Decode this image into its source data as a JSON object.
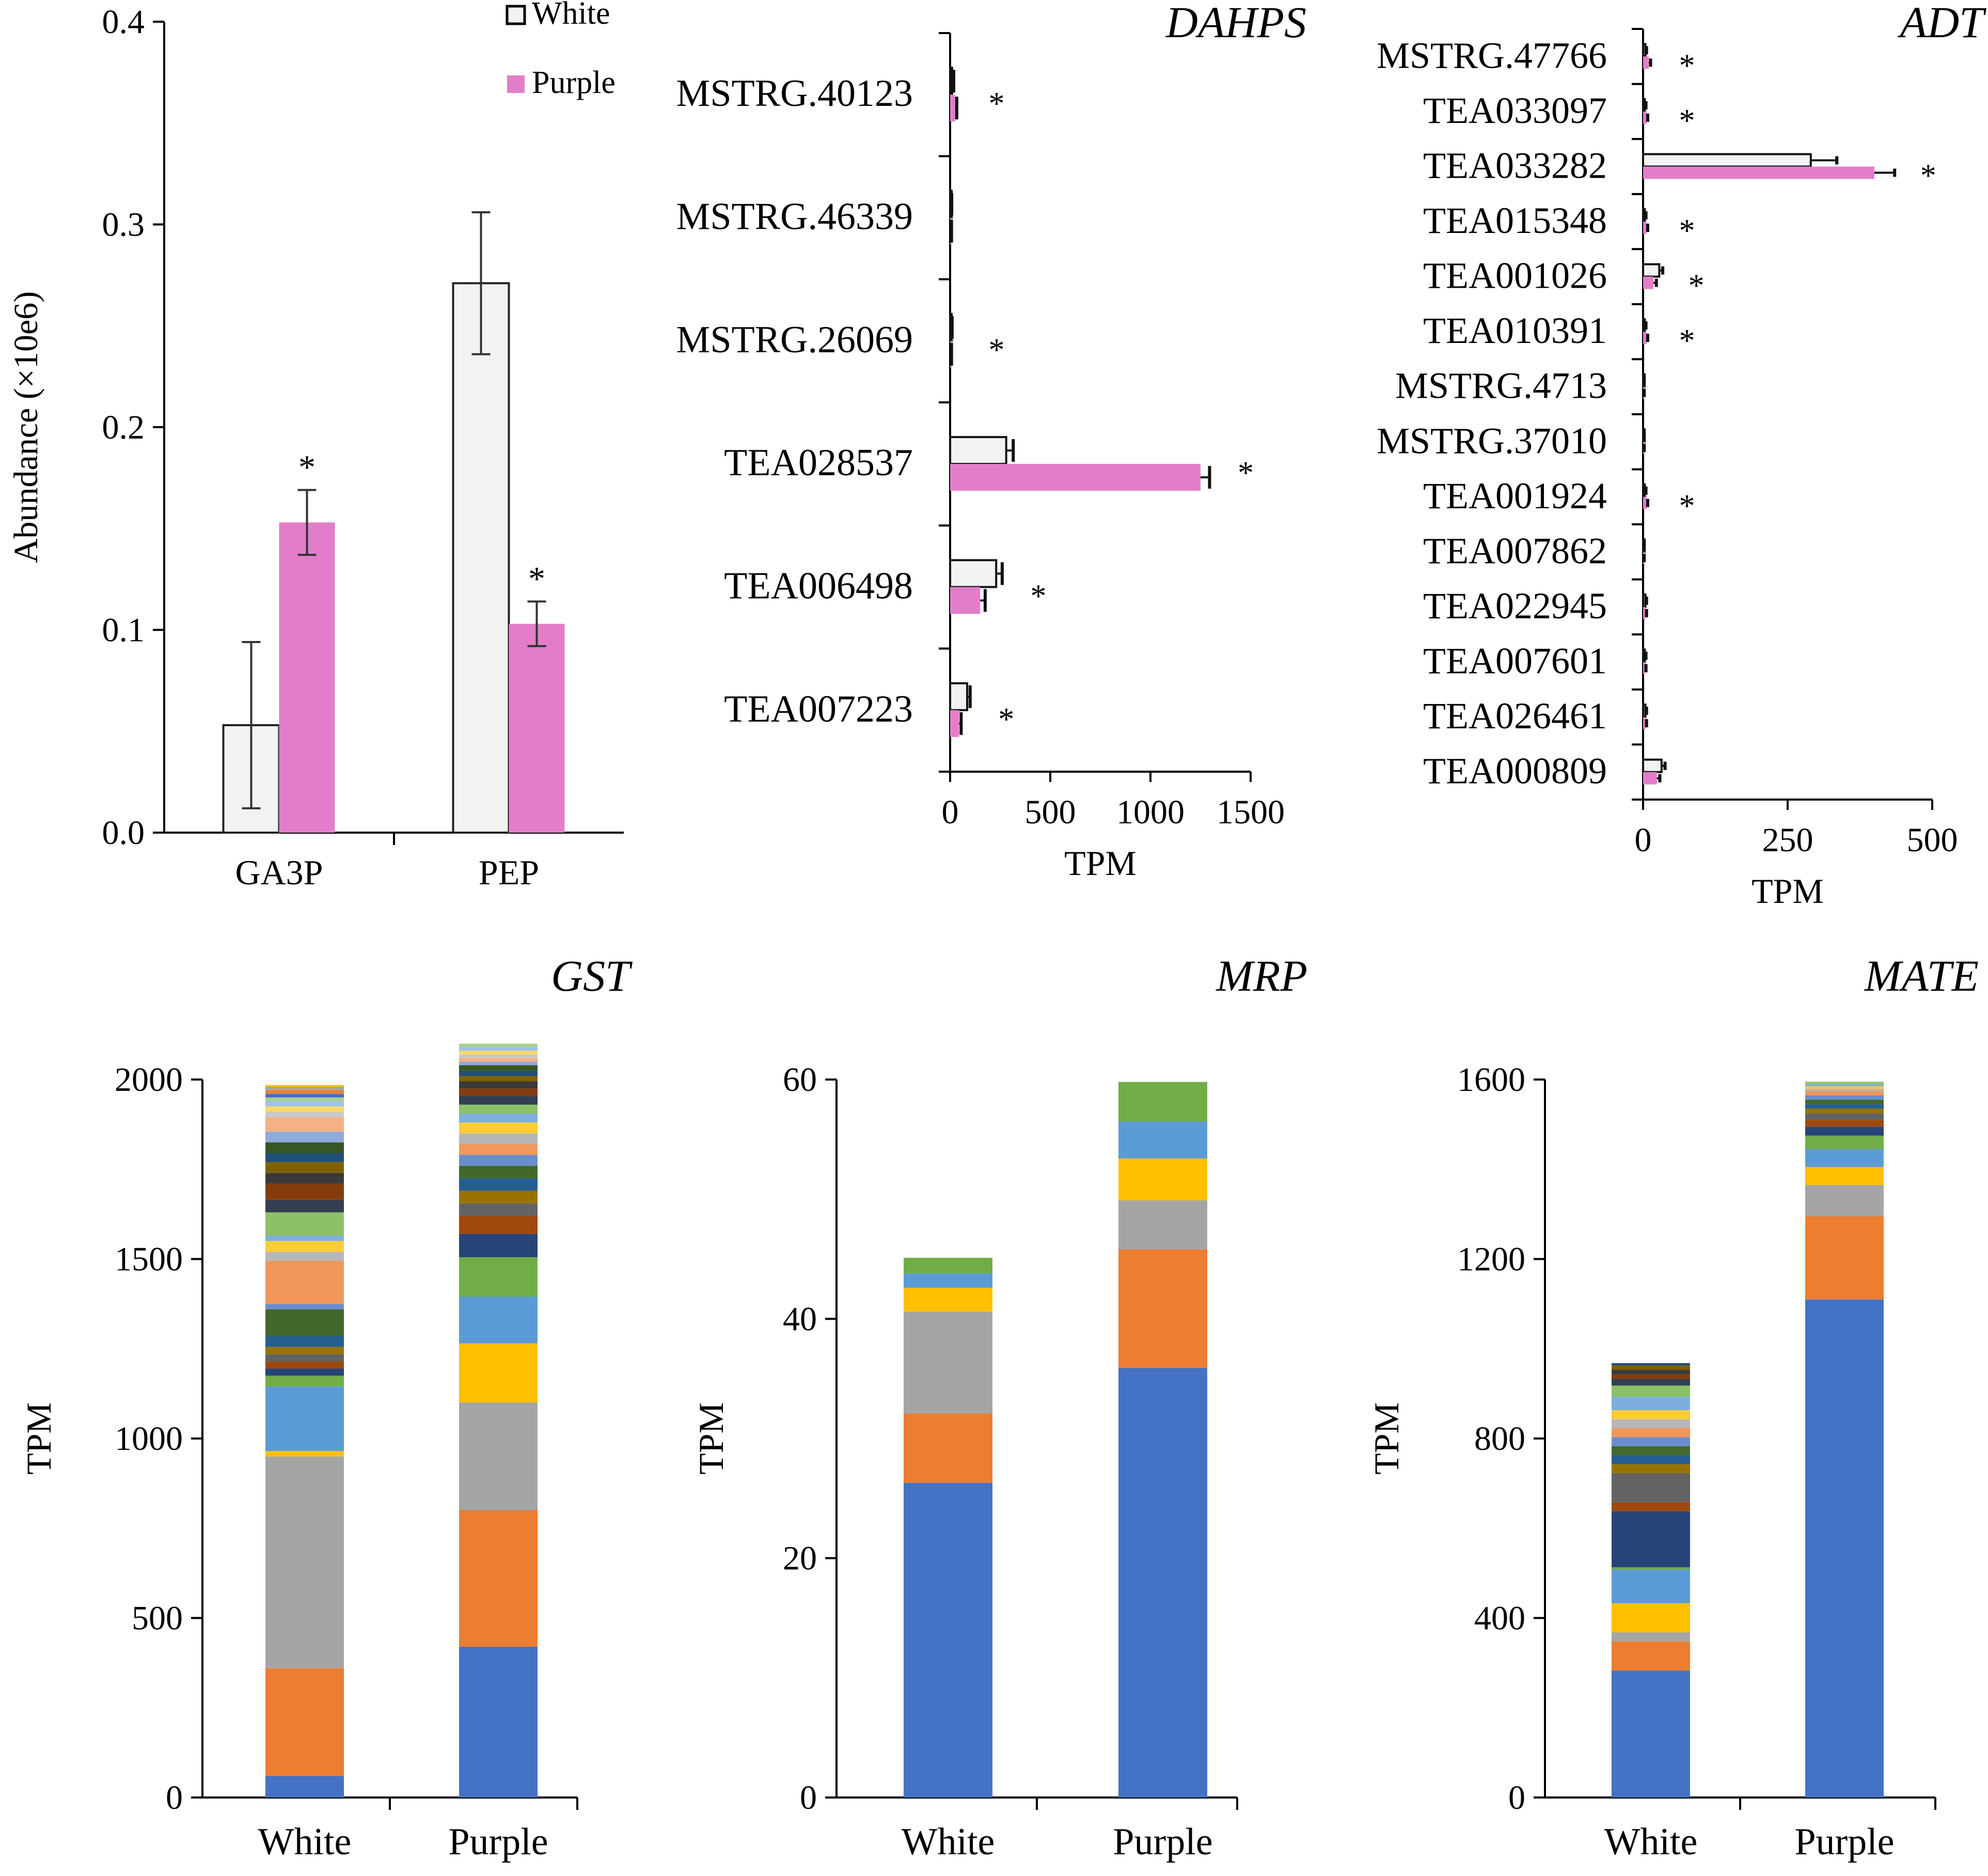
{
  "colors": {
    "white_fill": "#f2f2f2",
    "purple_fill": "#e27ec9",
    "axis": "#000000",
    "star": "#555555",
    "palette": [
      "#4472c4",
      "#ed7d31",
      "#a5a5a5",
      "#ffc000",
      "#5b9bd5",
      "#70ad47",
      "#264478",
      "#9e480e",
      "#636363",
      "#997300",
      "#255e91",
      "#43682b",
      "#698ed0",
      "#f1975a",
      "#b7b7b7",
      "#ffcd33",
      "#7cafdd",
      "#8cc168",
      "#333f50",
      "#843c0c",
      "#3a3a3a",
      "#7f6000",
      "#1f4e79",
      "#375623",
      "#8faadc",
      "#f4b183",
      "#c9c9c9",
      "#ffd966",
      "#9dc3e6",
      "#a9d18e"
    ]
  },
  "chart_data": [
    {
      "id": "abundance",
      "type": "bar",
      "title": "",
      "categories": [
        "GA3P",
        "PEP"
      ],
      "series": [
        {
          "name": "White",
          "values": [
            0.053,
            0.271
          ],
          "errors": [
            0.041,
            0.035
          ],
          "sig": [
            false,
            false
          ]
        },
        {
          "name": "Purple",
          "values": [
            0.153,
            0.103
          ],
          "errors": [
            0.016,
            0.011
          ],
          "sig": [
            true,
            true
          ]
        }
      ],
      "ylabel": "Abundance (×10e6)",
      "xlabel": "",
      "ylim": [
        0,
        0.4
      ],
      "yticks": [
        "0.0",
        "0.1",
        "0.2",
        "0.3",
        "0.4"
      ],
      "legend": [
        "White",
        "Purple"
      ],
      "legend_position": "top-right",
      "sig_marker": "*"
    },
    {
      "id": "dahps",
      "type": "bar-horizontal",
      "title": "DAHPS",
      "categories": [
        "MSTRG.40123",
        "MSTRG.46339",
        "MSTRG.26069",
        "TEA028537",
        "TEA006498",
        "TEA007223"
      ],
      "series": [
        {
          "name": "White",
          "values": [
            10,
            5,
            6,
            280,
            230,
            85
          ],
          "errors": [
            8,
            3,
            4,
            35,
            30,
            15
          ]
        },
        {
          "name": "Purple",
          "values": [
            25,
            4,
            4,
            1250,
            150,
            45
          ],
          "errors": [
            8,
            3,
            3,
            45,
            25,
            10
          ]
        }
      ],
      "sig": [
        true,
        false,
        true,
        true,
        true,
        true
      ],
      "xlabel": "TPM",
      "xlim": [
        0,
        1500
      ],
      "xticks": [
        "0",
        "500",
        "1000",
        "1500"
      ],
      "sig_marker": "*"
    },
    {
      "id": "adt",
      "type": "bar-horizontal",
      "title": "ADT",
      "categories": [
        "MSTRG.47766",
        "TEA033097",
        "TEA033282",
        "TEA015348",
        "TEA001026",
        "TEA010391",
        "MSTRG.4713",
        "MSTRG.37010",
        "TEA001924",
        "TEA007862",
        "TEA022945",
        "TEA007601",
        "TEA026461",
        "TEA000809"
      ],
      "series": [
        {
          "name": "White",
          "values": [
            4,
            3,
            290,
            3,
            28,
            3,
            1,
            1,
            3,
            1,
            4,
            3,
            4,
            32
          ],
          "errors": [
            2,
            2,
            45,
            2,
            6,
            2,
            1,
            1,
            2,
            1,
            2,
            2,
            2,
            6
          ]
        },
        {
          "name": "Purple",
          "values": [
            10,
            6,
            400,
            6,
            18,
            6,
            1,
            1,
            6,
            1,
            4,
            3,
            4,
            24
          ],
          "errors": [
            3,
            2,
            35,
            2,
            5,
            2,
            1,
            1,
            2,
            1,
            2,
            2,
            2,
            5
          ]
        }
      ],
      "sig": [
        true,
        true,
        true,
        true,
        true,
        true,
        false,
        false,
        true,
        false,
        false,
        false,
        false,
        false
      ],
      "xlabel": "TPM",
      "xlim": [
        0,
        500
      ],
      "xticks": [
        "0",
        "250",
        "500"
      ],
      "sig_marker": "*"
    },
    {
      "id": "gst",
      "type": "stacked-bar",
      "title": "GST",
      "categories": [
        "White",
        "Purple"
      ],
      "ylabel": "TPM",
      "ylim": [
        0,
        2000
      ],
      "yticks": [
        "0",
        "500",
        "1000",
        "1500",
        "2000"
      ],
      "stacks": [
        [
          60,
          300,
          590,
          15,
          180,
          30,
          20,
          20,
          20,
          20,
          30,
          75,
          15,
          120,
          25,
          30,
          15,
          65,
          35,
          45,
          30,
          30,
          25,
          30,
          30,
          40,
          15,
          15,
          15,
          10,
          10,
          10,
          10,
          5
        ],
        [
          420,
          380,
          300,
          165,
          130,
          110,
          65,
          50,
          35,
          35,
          35,
          35,
          30,
          30,
          30,
          30,
          25,
          25,
          25,
          20,
          20,
          15,
          15,
          15,
          10,
          10,
          10,
          10,
          10,
          10
        ]
      ]
    },
    {
      "id": "mrp",
      "type": "stacked-bar",
      "title": "MRP",
      "categories": [
        "White",
        "Purple"
      ],
      "ylabel": "TPM",
      "ylim": [
        0,
        60
      ],
      "yticks": [
        "0",
        "20",
        "40",
        "60"
      ],
      "stacks": [
        [
          26.3,
          5.8,
          8.5,
          2,
          1.2,
          1.3
        ],
        [
          35.9,
          9.9,
          4.1,
          3.5,
          3.1,
          3.3
        ]
      ]
    },
    {
      "id": "mate",
      "type": "stacked-bar",
      "title": "MATE",
      "categories": [
        "White",
        "Purple"
      ],
      "ylabel": "TPM",
      "ylim": [
        0,
        1600
      ],
      "yticks": [
        "0",
        "400",
        "800",
        "1200",
        "1600"
      ],
      "stacks": [
        [
          283,
          65,
          20,
          65,
          75,
          5,
          125,
          20,
          65,
          20,
          20,
          20,
          20,
          20,
          20,
          20,
          30,
          25,
          15,
          10,
          10,
          10,
          5
        ],
        [
          1110,
          185,
          70,
          40,
          40,
          30,
          20,
          15,
          15,
          10,
          10,
          10,
          10,
          10,
          5,
          5,
          5,
          5
        ]
      ]
    }
  ]
}
